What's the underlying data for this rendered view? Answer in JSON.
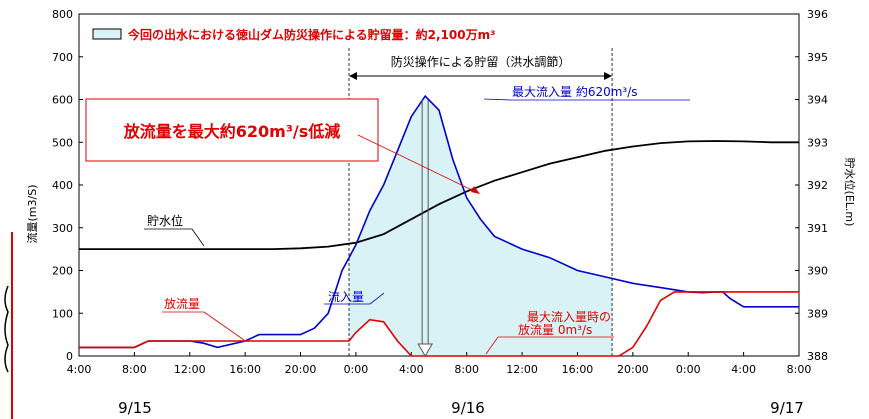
{
  "chart_data": {
    "type": "line",
    "legend": {
      "label": "今回の出水における徳山ダム防災操作による貯留量：約2,100万m³",
      "position": "top-left"
    },
    "ylabel": "流量(m3/S)",
    "y2label": "貯水位(EL.m)",
    "ylim": [
      0,
      800
    ],
    "y2lim": [
      388,
      396
    ],
    "yticks": [
      0,
      100,
      200,
      300,
      400,
      500,
      600,
      700,
      800
    ],
    "y2ticks": [
      388,
      389,
      390,
      391,
      392,
      393,
      394,
      395,
      396
    ],
    "x_range_hours": [
      0,
      52
    ],
    "xtick_labels": [
      "4:00",
      "8:00",
      "12:00",
      "16:00",
      "20:00",
      "0:00",
      "4:00",
      "8:00",
      "12:00",
      "16:00",
      "20:00",
      "0:00",
      "4:00",
      "8:00"
    ],
    "dates": [
      "9/15",
      "9/16",
      "9/17"
    ],
    "grid": false,
    "series": [
      {
        "name": "流入量",
        "axis": "left",
        "color": "#0000cc",
        "x": [
          0,
          4,
          5,
          6,
          8,
          9,
          10,
          12,
          13,
          14,
          16,
          17,
          18,
          19,
          19.5,
          20,
          21,
          22,
          23,
          24,
          25,
          26,
          27,
          28,
          29,
          30,
          31,
          32,
          34,
          36,
          38,
          40,
          42,
          44,
          45,
          46,
          46.5,
          47,
          48,
          50,
          52
        ],
        "values": [
          20,
          20,
          35,
          35,
          35,
          30,
          20,
          35,
          50,
          50,
          50,
          65,
          100,
          200,
          230,
          260,
          340,
          400,
          480,
          560,
          608,
          575,
          460,
          370,
          320,
          280,
          265,
          250,
          230,
          200,
          185,
          170,
          160,
          150,
          148,
          150,
          150,
          135,
          115,
          115,
          115
        ]
      },
      {
        "name": "放流量",
        "axis": "left",
        "color": "#e00000",
        "x": [
          0,
          4,
          5,
          6,
          8,
          10,
          12,
          14,
          16,
          18,
          19.5,
          20,
          21,
          22,
          23,
          24,
          25,
          26,
          28,
          30,
          32,
          34,
          36,
          38,
          39,
          40,
          41,
          42,
          43,
          44,
          46,
          48,
          50,
          52
        ],
        "values": [
          20,
          20,
          35,
          35,
          35,
          35,
          35,
          35,
          35,
          35,
          35,
          55,
          85,
          80,
          35,
          0,
          0,
          0,
          0,
          0,
          0,
          0,
          0,
          0,
          0,
          20,
          70,
          130,
          150,
          150,
          150,
          150,
          150,
          150
        ]
      },
      {
        "name": "貯水位",
        "axis": "right",
        "color": "#000000",
        "x": [
          0,
          2,
          4,
          6,
          8,
          10,
          12,
          14,
          16,
          18,
          20,
          22,
          24,
          26,
          28,
          30,
          32,
          34,
          36,
          38,
          40,
          42,
          44,
          46,
          48,
          50,
          52
        ],
        "values": [
          390.5,
          390.5,
          390.5,
          390.5,
          390.5,
          390.5,
          390.5,
          390.5,
          390.52,
          390.56,
          390.65,
          390.85,
          391.2,
          391.55,
          391.85,
          392.1,
          392.3,
          392.5,
          392.65,
          392.8,
          392.9,
          392.98,
          393.02,
          393.03,
          393.02,
          393.0,
          393.0
        ]
      }
    ],
    "storage_period": {
      "x_start": 19.5,
      "x_end": 38.5,
      "label": "防災操作による貯留（洪水調節）"
    },
    "annotations": {
      "reduction": "放流量を最大約620m³/s低減",
      "peak_inflow": "最大流入量 約620m³/s",
      "peak_outflow_line1": "最大流入量時の",
      "peak_outflow_line2": "放流量 0m³/s",
      "level_label": "貯水位",
      "inflow_label": "流入量",
      "outflow_label": "放流量"
    }
  }
}
